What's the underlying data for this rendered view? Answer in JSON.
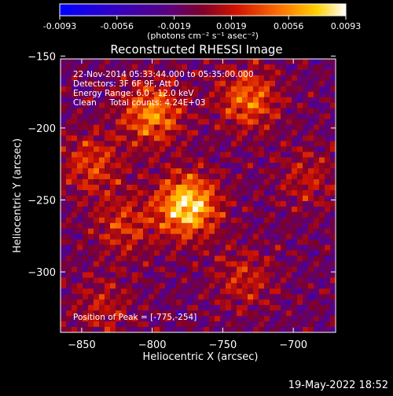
{
  "colorbar": {
    "min_label": "-0.0093",
    "ticks": [
      "-0.0093",
      "-0.0056",
      "-0.0019",
      "0.0019",
      "0.0056",
      "0.0093"
    ],
    "units": "(photons cm⁻² s⁻¹ asec⁻²)",
    "range": [
      -0.0093,
      0.0093
    ]
  },
  "plot": {
    "title": "Reconstructed RHESSI Image",
    "annotations": [
      "22-Nov-2014 05:33:44.000 to 05:35:00.000",
      "Detectors: 3F 6F 9F, Att 0",
      "Energy Range: 6.0 - 12.0 keV",
      "Clean     Total counts: 4.24E+03"
    ],
    "peak_label": "Position of Peak = [-775,-254]"
  },
  "chart_data": {
    "type": "heatmap",
    "title": "Reconstructed RHESSI Image",
    "xlabel": "Heliocentric X (arcsec)",
    "ylabel": "Heliocentric Y (arcsec)",
    "xlim": [
      -865,
      -670
    ],
    "ylim": [
      -342,
      -152
    ],
    "x_ticks": [
      -850,
      -800,
      -750,
      -700
    ],
    "y_ticks": [
      -150,
      -200,
      -250,
      -300
    ],
    "x_tick_labels": [
      "−850",
      "−800",
      "−750",
      "−700"
    ],
    "y_tick_labels": [
      "−150",
      "−200",
      "−250",
      "−300"
    ],
    "value_range": [
      -0.0093,
      0.0093
    ],
    "peak": [
      -775,
      -254
    ],
    "sources": [
      {
        "x": -775,
        "y": -254,
        "amplitude": 1.0
      },
      {
        "x": -800,
        "y": -190,
        "amplitude": 0.7
      },
      {
        "x": -732,
        "y": -180,
        "amplitude": 0.6
      },
      {
        "x": -843,
        "y": -225,
        "amplitude": 0.45
      },
      {
        "x": -820,
        "y": -268,
        "amplitude": 0.4
      },
      {
        "x": -735,
        "y": -305,
        "amplitude": 0.35
      },
      {
        "x": -835,
        "y": -325,
        "amplitude": 0.3
      },
      {
        "x": -690,
        "y": -235,
        "amplitude": 0.3
      }
    ],
    "colormap": "Rainbow/hot: blue to purple to red to orange to yellow to white"
  },
  "footer": {
    "timestamp": "19-May-2022 18:52"
  }
}
